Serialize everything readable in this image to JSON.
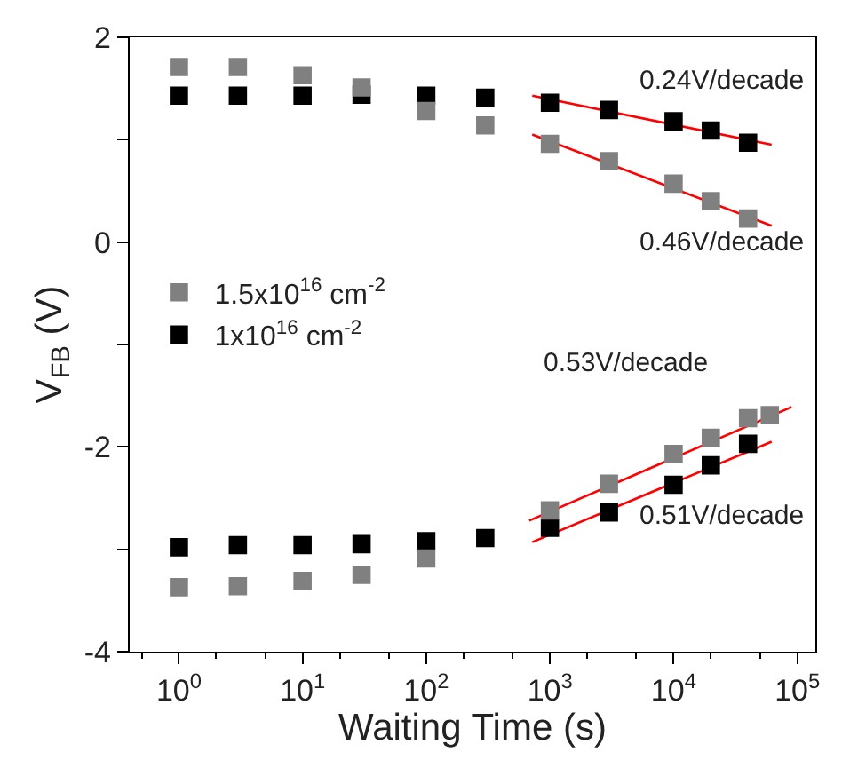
{
  "chart_data": {
    "type": "scatter",
    "xlabel": "Waiting Time (s)",
    "ylabel": "V$_{FB}$ (V)",
    "log": "x",
    "legend": "left",
    "xlim": [
      0.4,
      140000
    ],
    "xticks": [
      {
        "value": 1,
        "label": "10$^{0}$"
      },
      {
        "value": 10,
        "label": "10$^{1}$"
      },
      {
        "value": 100,
        "label": "10$^{2}$"
      },
      {
        "value": 1000,
        "label": "10$^{3}$"
      },
      {
        "value": 10000,
        "label": "10$^{4}$"
      },
      {
        "value": 100000,
        "label": "10$^{5}$"
      }
    ],
    "ylim": [
      -4,
      2
    ],
    "yticks": [
      -4,
      {
        "value": -3,
        "label": null
      },
      -2,
      {
        "value": -1,
        "label": null
      },
      0,
      {
        "value": 1,
        "label": null
      },
      2
    ],
    "series": [
      {
        "name": "1.5x10$^{16}$ cm$^{-2}$",
        "color": "#808080",
        "marker": "square",
        "x": [
          1,
          3,
          10,
          30,
          100,
          300,
          1000,
          3000,
          10000,
          20000,
          40000
        ],
        "values": [
          1.71,
          1.71,
          1.63,
          1.51,
          1.28,
          1.14,
          0.96,
          0.79,
          0.57,
          0.4,
          0.23
        ]
      },
      {
        "color": "#808080",
        "marker": "square",
        "x": [
          1,
          3,
          10,
          30,
          100,
          1000,
          3000,
          10000,
          20000,
          40000,
          60000
        ],
        "values": [
          -3.37,
          -3.36,
          -3.31,
          -3.25,
          -3.09,
          -2.62,
          -2.36,
          -2.07,
          -1.91,
          -1.72,
          -1.69
        ]
      },
      {
        "name": "1x10$^{16}$ cm$^{-2}$",
        "color": "#000000",
        "marker": "square",
        "x": [
          1,
          3,
          10,
          30,
          100,
          300,
          1000,
          3000,
          10000,
          20000,
          40000
        ],
        "values": [
          1.43,
          1.43,
          1.43,
          1.44,
          1.43,
          1.41,
          1.36,
          1.29,
          1.18,
          1.09,
          0.97
        ]
      },
      {
        "color": "#000000",
        "marker": "square",
        "x": [
          1,
          3,
          10,
          30,
          100,
          300,
          1000,
          3000,
          10000,
          20000,
          40000
        ],
        "values": [
          -2.98,
          -2.96,
          -2.96,
          -2.95,
          -2.92,
          -2.89,
          -2.79,
          -2.64,
          -2.37,
          -2.18,
          -1.97
        ]
      },
      {
        "type": "line",
        "marker": "none",
        "color": "#ff0000",
        "x": [
          720,
          62000
        ],
        "values": [
          1.43,
          0.95
        ]
      },
      {
        "type": "line",
        "marker": "none",
        "color": "#ff0000",
        "x": [
          720,
          62000
        ],
        "values": [
          1.05,
          0.16
        ]
      },
      {
        "type": "line",
        "marker": "none",
        "color": "#ff0000",
        "x": [
          680,
          90000
        ],
        "values": [
          -2.72,
          -1.61
        ]
      },
      {
        "type": "line",
        "marker": "none",
        "color": "#ff0000",
        "x": [
          720,
          62000
        ],
        "values": [
          -2.93,
          -1.95
        ]
      }
    ],
    "annotations": [
      "0.24V/decade",
      "0.46V/decade",
      "0.53V/decade",
      "0.51V/decade"
    ]
  }
}
